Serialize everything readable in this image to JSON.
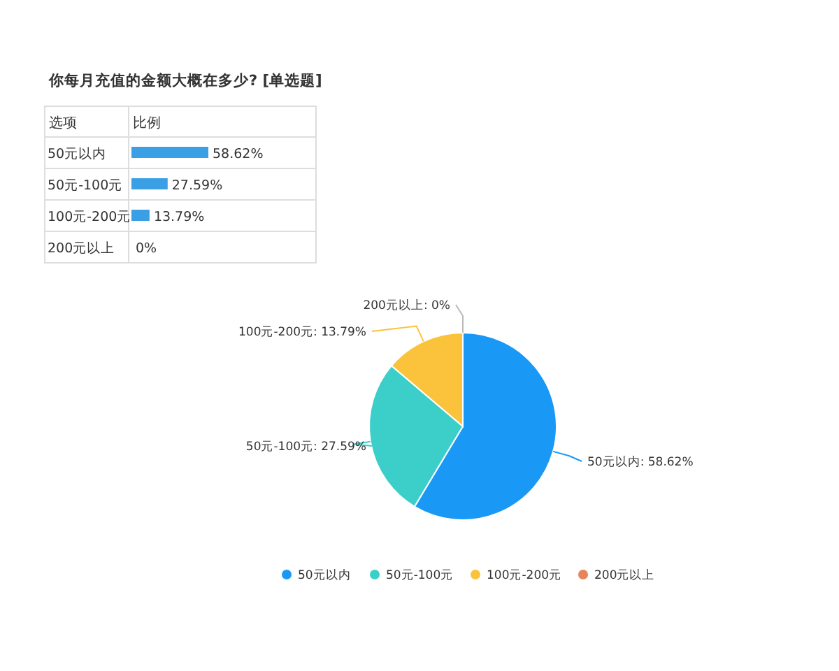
{
  "chart_data": [
    {
      "type": "bar",
      "orientation": "horizontal",
      "title": "你每月充值的金额大概在多少? [单选题]",
      "ylabel": "选项",
      "xlabel": "比例",
      "categories": [
        "50元以内",
        "50元-100元",
        "100元-200元",
        "200元以上"
      ],
      "values": [
        58.62,
        27.59,
        13.79,
        0
      ],
      "color": "#3a9fe5",
      "value_labels": [
        "58.62%",
        "27.59%",
        "13.79%",
        "0%"
      ]
    },
    {
      "type": "pie",
      "categories": [
        "50元以内",
        "50元-100元",
        "100元-200元",
        "200元以上"
      ],
      "values": [
        58.62,
        27.59,
        13.79,
        0
      ],
      "colors": [
        "#1a98f5",
        "#3ccfc9",
        "#fac33b",
        "#e8835a"
      ],
      "value_labels": [
        "50元以内: 58.62%",
        "50元-100元: 27.59%",
        "100元-200元: 13.79%",
        "200元以上: 0%"
      ],
      "legend": "bottom"
    }
  ]
}
